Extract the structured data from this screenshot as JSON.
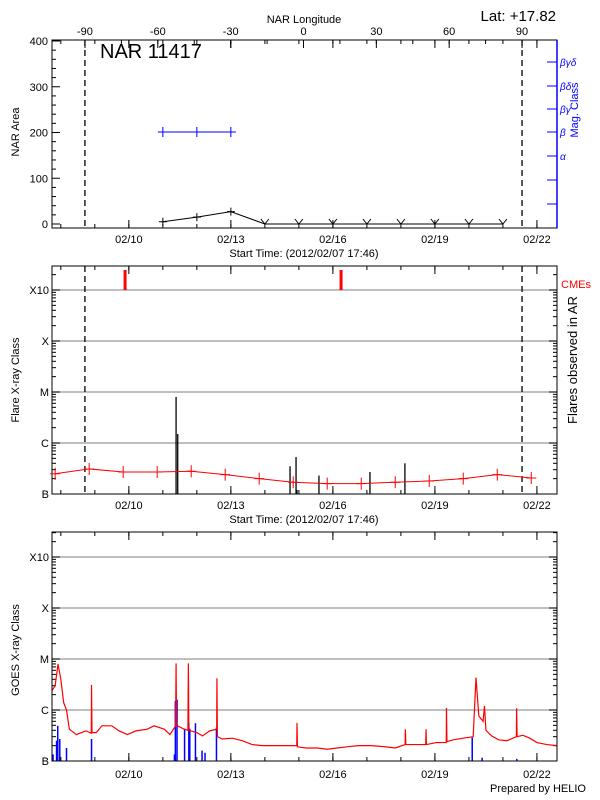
{
  "chart_data": [
    {
      "type": "line",
      "panel": "nar",
      "title": "NAR 11417",
      "annotation": "Lat: +17.82",
      "top_axis_label": "NAR Longitude",
      "top_axis_ticks": [
        "-90",
        "-60",
        "-30",
        "0",
        "30",
        "60",
        "90"
      ],
      "top_axis_tick_values": [
        -90,
        -60,
        -30,
        0,
        30,
        60,
        90
      ],
      "xlabel": "Start Time: (2012/02/07 17:46)",
      "xlim": [
        "2012-02-07T17:46",
        "2012-02-22T14:10"
      ],
      "x_tick_labels": [
        "02/10",
        "02/13",
        "02/16",
        "02/19",
        "02/22"
      ],
      "x_tick_dates": [
        "2012-02-10T00:00",
        "2012-02-13T00:00",
        "2012-02-16T00:00",
        "2012-02-19T00:00",
        "2012-02-22T00:00"
      ],
      "ylabel": "NAR Area",
      "ylim": [
        -9,
        402
      ],
      "y_ticks": [
        "0",
        "100",
        "200",
        "300",
        "400"
      ],
      "y_tick_values": [
        0,
        100,
        200,
        300,
        400
      ],
      "right_axis_label": "Mag. Class",
      "right_axis_ticks": [
        "βγδ",
        "βδ",
        "βγ",
        "β",
        "α"
      ],
      "limb_markers": [
        "2012-02-08T17:00",
        "2012-02-21T13:30"
      ],
      "series": [
        {
          "color": "#000000",
          "x": [
            "2012-02-11T00:00",
            "2012-02-12T00:00",
            "2012-02-13T00:00",
            "2012-02-14T00:00",
            "2012-02-15T00:00",
            "2012-02-16T00:00",
            "2012-02-17T00:00",
            "2012-02-18T00:00",
            "2012-02-19T00:00",
            "2012-02-20T00:00",
            "2012-02-21T00:00"
          ],
          "values": [
            5,
            15,
            27,
            0,
            0,
            0,
            0,
            0,
            0,
            0,
            0
          ],
          "markers": [
            "plus",
            "plus",
            "plus",
            "v",
            "v",
            "v",
            "v",
            "v",
            "v",
            "v",
            "v"
          ]
        },
        {
          "color": "#0000ff",
          "axis": "right",
          "x": [
            "2012-02-11T00:00",
            "2012-02-12T00:00",
            "2012-02-13T00:00"
          ],
          "classes": [
            "β",
            "β",
            "β"
          ]
        }
      ]
    },
    {
      "type": "bar",
      "panel": "flares",
      "xlabel": "Start Time: (2012/02/07 17:46)",
      "xlim": [
        "2012-02-07T17:46",
        "2012-02-22T14:10"
      ],
      "x_tick_labels": [
        "02/10",
        "02/13",
        "02/16",
        "02/19",
        "02/22"
      ],
      "x_tick_dates": [
        "2012-02-10T00:00",
        "2012-02-13T00:00",
        "2012-02-16T00:00",
        "2012-02-19T00:00",
        "2012-02-22T00:00"
      ],
      "ylabel": "Flare X-ray Class",
      "right_axis_label": "Flares observed in AR",
      "yscale": "log",
      "ylim": [
        1e-07,
        0.003
      ],
      "y_ticks": [
        "B",
        "C",
        "M",
        "X",
        "X10"
      ],
      "y_tick_values": [
        1e-07,
        1e-06,
        1e-05,
        0.0001,
        0.001
      ],
      "grid": true,
      "limb_markers": [
        "2012-02-08T17:00",
        "2012-02-21T13:30"
      ],
      "cme_label": "CMEs",
      "cme_color": "#ff0000",
      "cmes": [
        "2012-02-09T21:20",
        "2012-02-16T05:46"
      ],
      "flares": {
        "color": "#000000",
        "x": [
          "2012-02-11T09:20",
          "2012-02-11T10:30",
          "2012-02-14T17:46",
          "2012-02-14T22:00",
          "2012-02-14T22:40",
          "2012-02-15T14:10",
          "2012-02-17T02:10",
          "2012-02-18T02:50"
        ],
        "values": [
          8e-06,
          1.5e-06,
          3.5e-07,
          5.3e-07,
          1.2e-07,
          2.3e-07,
          2.7e-07,
          4e-07
        ]
      },
      "background": {
        "color": "#ff0000",
        "x": [
          "2012-02-07T20:00",
          "2012-02-08T20:00",
          "2012-02-09T20:00",
          "2012-02-10T20:00",
          "2012-02-11T20:00",
          "2012-02-12T20:00",
          "2012-02-13T20:00",
          "2012-02-14T20:00",
          "2012-02-15T20:00",
          "2012-02-16T20:00",
          "2012-02-17T20:00",
          "2012-02-18T20:00",
          "2012-02-19T20:00",
          "2012-02-20T20:00",
          "2012-02-21T20:00"
        ],
        "values": [
          2.5e-07,
          3.1e-07,
          2.7e-07,
          2.7e-07,
          2.8e-07,
          2.4e-07,
          2e-07,
          1.7e-07,
          1.6e-07,
          1.6e-07,
          1.7e-07,
          1.8e-07,
          2e-07,
          2.4e-07,
          2.06e-07
        ]
      }
    },
    {
      "type": "line",
      "panel": "goes",
      "xlim": [
        "2012-02-07T17:46",
        "2012-02-22T14:10"
      ],
      "x_tick_labels": [
        "02/10",
        "02/13",
        "02/16",
        "02/19",
        "02/22"
      ],
      "x_tick_dates": [
        "2012-02-10T00:00",
        "2012-02-13T00:00",
        "2012-02-16T00:00",
        "2012-02-19T00:00",
        "2012-02-22T00:00"
      ],
      "ylabel": "GOES X-ray Class",
      "yscale": "log",
      "ylim": [
        1e-07,
        0.003
      ],
      "y_ticks": [
        "B",
        "C",
        "M",
        "X",
        "X10"
      ],
      "y_tick_values": [
        1e-07,
        1e-06,
        1e-05,
        0.0001,
        0.001
      ],
      "grid": true,
      "footer": "Prepared by HELIO",
      "flux": {
        "color": "#ff0000",
        "points": [
          [
            "2012-02-07T17:46",
            2.4e-06
          ],
          [
            "2012-02-07T20:00",
            3e-06
          ],
          [
            "2012-02-07T22:00",
            8e-06
          ],
          [
            "2012-02-08T00:00",
            4e-06
          ],
          [
            "2012-02-08T02:00",
            1.4e-06
          ],
          [
            "2012-02-08T04:00",
            1e-06
          ],
          [
            "2012-02-08T06:00",
            4.2e-07
          ],
          [
            "2012-02-08T11:00",
            3.3e-07
          ],
          [
            "2012-02-08T17:46",
            3.9e-07
          ],
          [
            "2012-02-08T21:30",
            3.5e-07
          ],
          [
            "2012-02-08T21:40",
            3.1e-06
          ],
          [
            "2012-02-08T22:00",
            3.6e-07
          ],
          [
            "2012-02-09T01:00",
            3.6e-07
          ],
          [
            "2012-02-09T05:00",
            4.9e-07
          ],
          [
            "2012-02-09T12:00",
            4.9e-07
          ],
          [
            "2012-02-09T17:00",
            3.9e-07
          ],
          [
            "2012-02-09T23:00",
            3.3e-07
          ],
          [
            "2012-02-10T05:00",
            3.9e-07
          ],
          [
            "2012-02-10T13:00",
            4.2e-07
          ],
          [
            "2012-02-10T17:46",
            4.9e-07
          ],
          [
            "2012-02-11T01:00",
            4.2e-07
          ],
          [
            "2012-02-11T05:00",
            3.3e-07
          ],
          [
            "2012-02-11T09:00",
            4.9e-07
          ],
          [
            "2012-02-11T09:20",
            8.2e-06
          ],
          [
            "2012-02-11T09:40",
            5e-07
          ],
          [
            "2012-02-11T15:00",
            4.2e-07
          ],
          [
            "2012-02-11T17:40",
            4e-07
          ],
          [
            "2012-02-11T18:00",
            8.2e-06
          ],
          [
            "2012-02-11T18:20",
            4e-07
          ],
          [
            "2012-02-12T00:00",
            3.6e-07
          ],
          [
            "2012-02-12T04:00",
            3.1e-07
          ],
          [
            "2012-02-12T09:00",
            3.9e-07
          ],
          [
            "2012-02-12T14:00",
            4.2e-07
          ],
          [
            "2012-02-12T14:10",
            4.2e-06
          ],
          [
            "2012-02-12T14:30",
            3e-07
          ],
          [
            "2012-02-12T17:46",
            2.7e-07
          ],
          [
            "2012-02-13T01:00",
            2.8e-07
          ],
          [
            "2012-02-13T08:00",
            2.5e-07
          ],
          [
            "2012-02-13T15:00",
            2.1e-07
          ],
          [
            "2012-02-13T22:00",
            2e-07
          ],
          [
            "2012-02-14T05:00",
            2e-07
          ],
          [
            "2012-02-14T15:00",
            2e-07
          ],
          [
            "2012-02-14T22:30",
            2e-07
          ],
          [
            "2012-02-14T22:40",
            5.6e-07
          ],
          [
            "2012-02-14T23:00",
            1.9e-07
          ],
          [
            "2012-02-15T05:00",
            1.8e-07
          ],
          [
            "2012-02-15T13:00",
            1.8e-07
          ],
          [
            "2012-02-15T20:00",
            1.7e-07
          ],
          [
            "2012-02-16T03:00",
            1.8e-07
          ],
          [
            "2012-02-16T10:00",
            1.9e-07
          ],
          [
            "2012-02-16T17:46",
            2e-07
          ],
          [
            "2012-02-17T03:00",
            2e-07
          ],
          [
            "2012-02-17T13:00",
            1.9e-07
          ],
          [
            "2012-02-17T20:00",
            1.8e-07
          ],
          [
            "2012-02-18T03:00",
            2.1e-07
          ],
          [
            "2012-02-18T03:10",
            4.2e-07
          ],
          [
            "2012-02-18T03:30",
            2.1e-07
          ],
          [
            "2012-02-18T10:00",
            2.1e-07
          ],
          [
            "2012-02-18T17:30",
            2.1e-07
          ],
          [
            "2012-02-18T17:46",
            4.2e-07
          ],
          [
            "2012-02-18T18:00",
            2.1e-07
          ],
          [
            "2012-02-19T01:00",
            2.3e-07
          ],
          [
            "2012-02-19T08:00",
            2.3e-07
          ],
          [
            "2012-02-19T08:10",
            1.1e-06
          ],
          [
            "2012-02-19T08:30",
            2.4e-07
          ],
          [
            "2012-02-19T13:00",
            2.6e-07
          ],
          [
            "2012-02-19T20:00",
            2.8e-07
          ],
          [
            "2012-02-20T03:00",
            3e-07
          ],
          [
            "2012-02-20T05:00",
            4.3e-06
          ],
          [
            "2012-02-20T07:00",
            7.6e-07
          ],
          [
            "2012-02-20T10:00",
            6e-07
          ],
          [
            "2012-02-20T11:00",
            1.2e-06
          ],
          [
            "2012-02-20T12:00",
            4e-07
          ],
          [
            "2012-02-20T16:00",
            3.1e-07
          ],
          [
            "2012-02-20T21:00",
            2.6e-07
          ],
          [
            "2012-02-21T03:00",
            2.5e-07
          ],
          [
            "2012-02-21T09:30",
            3e-07
          ],
          [
            "2012-02-21T09:40",
            1.08e-06
          ],
          [
            "2012-02-21T10:00",
            3e-07
          ],
          [
            "2012-02-21T14:00",
            3.2e-07
          ],
          [
            "2012-02-21T19:00",
            2.8e-07
          ],
          [
            "2012-02-22T00:00",
            2.3e-07
          ],
          [
            "2012-02-22T07:00",
            2.1e-07
          ],
          [
            "2012-02-22T14:10",
            2e-07
          ]
        ]
      },
      "events": {
        "color": "#0000ff",
        "x": [
          "2012-02-07T18:30",
          "2012-02-07T21:00",
          "2012-02-07T21:50",
          "2012-02-07T23:15",
          "2012-02-08T04:00",
          "2012-02-08T21:40",
          "2012-02-11T08:10",
          "2012-02-11T08:50",
          "2012-02-11T10:00",
          "2012-02-11T15:20",
          "2012-02-11T18:20",
          "2012-02-11T19:00",
          "2012-02-11T23:00",
          "2012-02-12T03:40",
          "2012-02-12T05:46",
          "2012-02-12T13:50",
          "2012-02-20T02:20",
          "2012-02-20T09:20",
          "2012-02-21T09:50"
        ],
        "values": [
          1.35e-07,
          2.5e-07,
          4.9e-07,
          2.7e-07,
          1.8e-07,
          2.7e-07,
          1.35e-07,
          1.5e-06,
          1.6e-06,
          4.3e-07,
          5.6e-07,
          4.3e-07,
          5.5e-07,
          1.6e-07,
          1.45e-07,
          4.5e-07,
          2.9e-07,
          1.16e-07,
          1.1e-07
        ]
      }
    }
  ]
}
